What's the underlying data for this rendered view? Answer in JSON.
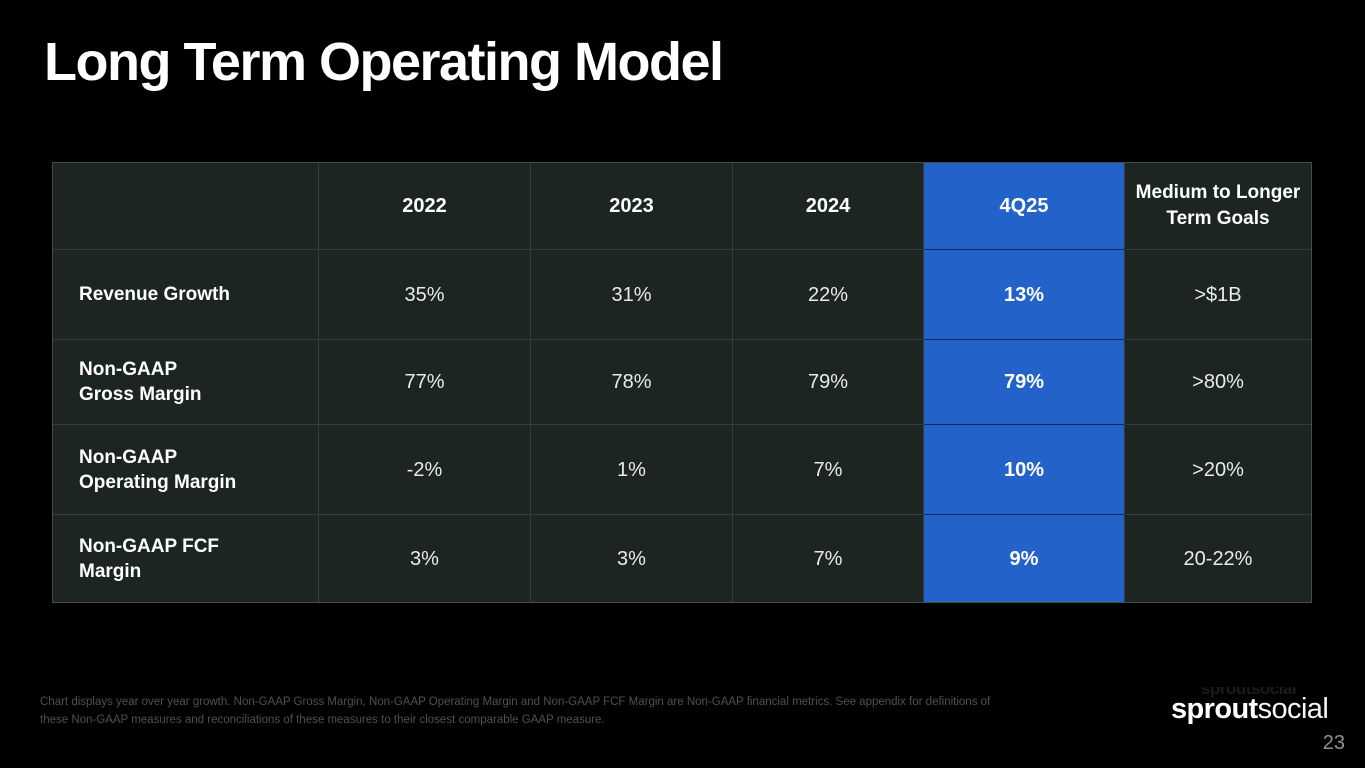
{
  "slide": {
    "title": "Long Term Operating Model",
    "page_number": "23",
    "logo": {
      "bold_part": "sprout",
      "light_part": "social",
      "ghost_text": "sproutsocial"
    },
    "footnote_lines": [
      "Chart displays year over year growth. Non-GAAP Gross Margin, Non-GAAP Operating Margin and Non-GAAP FCF Margin are Non-GAAP financial metrics. See appendix for definitions of",
      "these Non-GAAP measures and reconciliations of these measures to their closest comparable GAAP measure."
    ]
  },
  "colors": {
    "background": "#000000",
    "cell_background": "#1d2523",
    "grid_line": "#353d3a",
    "highlight_blue": "#2362c8",
    "value_text": "#e9ebe9",
    "footnote_text": "#4b524f"
  },
  "table": {
    "columns": [
      "",
      "2022",
      "2023",
      "2024",
      "4Q25",
      "Medium to Longer\nTerm Goals"
    ],
    "highlighted_column": "4Q25",
    "rows": [
      {
        "label": "Revenue Growth",
        "values": [
          "35%",
          "31%",
          "22%",
          "13%",
          ">$1B"
        ]
      },
      {
        "label": "Non-GAAP\nGross Margin",
        "values": [
          "77%",
          "78%",
          "79%",
          "79%",
          ">80%"
        ]
      },
      {
        "label": "Non-GAAP\nOperating Margin",
        "values": [
          "-2%",
          "1%",
          "7%",
          "10%",
          ">20%"
        ]
      },
      {
        "label": "Non-GAAP FCF\nMargin",
        "values": [
          "3%",
          "3%",
          "7%",
          "9%",
          "20-22%"
        ]
      }
    ]
  },
  "chart_data": {
    "type": "table",
    "title": "Long Term Operating Model",
    "categories": [
      "2022",
      "2023",
      "2024",
      "4Q25",
      "Medium to Longer Term Goals"
    ],
    "series": [
      {
        "name": "Revenue Growth",
        "values": [
          "35%",
          "31%",
          "22%",
          "13%",
          ">$1B"
        ]
      },
      {
        "name": "Non-GAAP Gross Margin",
        "values": [
          "77%",
          "78%",
          "79%",
          "79%",
          ">80%"
        ]
      },
      {
        "name": "Non-GAAP Operating Margin",
        "values": [
          "-2%",
          "1%",
          "7%",
          "10%",
          ">20%"
        ]
      },
      {
        "name": "Non-GAAP FCF Margin",
        "values": [
          "3%",
          "3%",
          "7%",
          "9%",
          "20-22%"
        ]
      }
    ],
    "highlighted_column": "4Q25"
  }
}
